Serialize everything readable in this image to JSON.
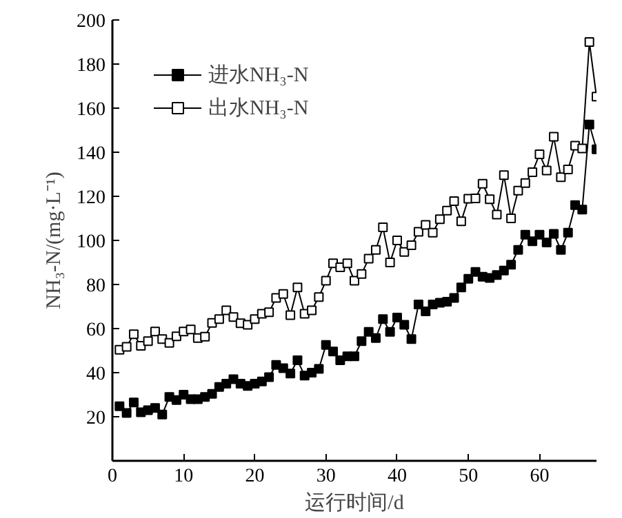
{
  "chart_data": {
    "type": "line",
    "xlabel": "运行时间/d",
    "ylabel": "NH₃-N/(mg·L⁻¹)",
    "x": [
      1,
      2,
      3,
      4,
      5,
      6,
      7,
      8,
      9,
      10,
      11,
      12,
      13,
      14,
      15,
      16,
      17,
      18,
      19,
      20,
      21,
      22,
      23,
      24,
      25,
      26,
      27,
      28,
      29,
      30,
      31,
      32,
      33,
      34,
      35,
      36,
      37,
      38,
      39,
      40,
      41,
      42,
      43,
      44,
      45,
      46,
      47,
      48,
      49,
      50,
      51,
      52,
      53,
      54,
      55,
      56,
      57,
      58,
      59,
      60,
      61,
      62,
      63,
      64,
      65,
      66,
      67,
      68
    ],
    "series": [
      {
        "name": "进水NH₃-N",
        "color": "#000000",
        "values": [
          24.8,
          21.7,
          26.5,
          22,
          23,
          24,
          21,
          29,
          27.6,
          30,
          28,
          28,
          29,
          30.4,
          33.5,
          35,
          37,
          35,
          34,
          35,
          36,
          38,
          43.5,
          42,
          39.6,
          45.6,
          38.7,
          40,
          41.7,
          52.6,
          49.6,
          45.6,
          47.4,
          47.4,
          54.3,
          58.5,
          55.7,
          64.3,
          58.5,
          65,
          61.7,
          55.2,
          70.9,
          67.8,
          70.9,
          71.7,
          72.2,
          73.9,
          78.7,
          82.6,
          85.7,
          83.5,
          83,
          84.3,
          86.3,
          89,
          95.7,
          102.6,
          99.6,
          102.6,
          99.1,
          103,
          95.7,
          103.5,
          116,
          114,
          152.6,
          141.3
        ]
      },
      {
        "name": "出水NH₃-N",
        "color": "#000000",
        "values": [
          50.4,
          51.7,
          57.4,
          52.2,
          54.3,
          58.7,
          55.2,
          53.5,
          56.5,
          58.7,
          59.6,
          55.7,
          56.3,
          62.6,
          64.3,
          68.3,
          65.2,
          62.4,
          61.7,
          64.3,
          66.7,
          67.4,
          73.9,
          75.7,
          66.1,
          78.7,
          66.7,
          68.3,
          74.3,
          81.7,
          89.6,
          87.8,
          89.6,
          81.7,
          84.8,
          91.7,
          95.7,
          105.9,
          90,
          100,
          94.8,
          97.8,
          103.9,
          107,
          103.5,
          109.6,
          113.5,
          117.8,
          108.7,
          118.9,
          119.1,
          125.7,
          118.7,
          111.7,
          129.6,
          110,
          122.6,
          126,
          130.9,
          139.1,
          131.7,
          147,
          128.7,
          132.2,
          143,
          141.7,
          190,
          165.2
        ]
      }
    ],
    "xlim": [
      0,
      68
    ],
    "xticks": [
      0,
      10,
      20,
      30,
      40,
      50,
      60
    ],
    "ylim": [
      0,
      200
    ],
    "yticks": [
      20,
      40,
      60,
      80,
      100,
      120,
      140,
      160,
      180,
      200
    ],
    "marker": "square",
    "line_style": "solid",
    "grid": false,
    "legend": "top left"
  }
}
